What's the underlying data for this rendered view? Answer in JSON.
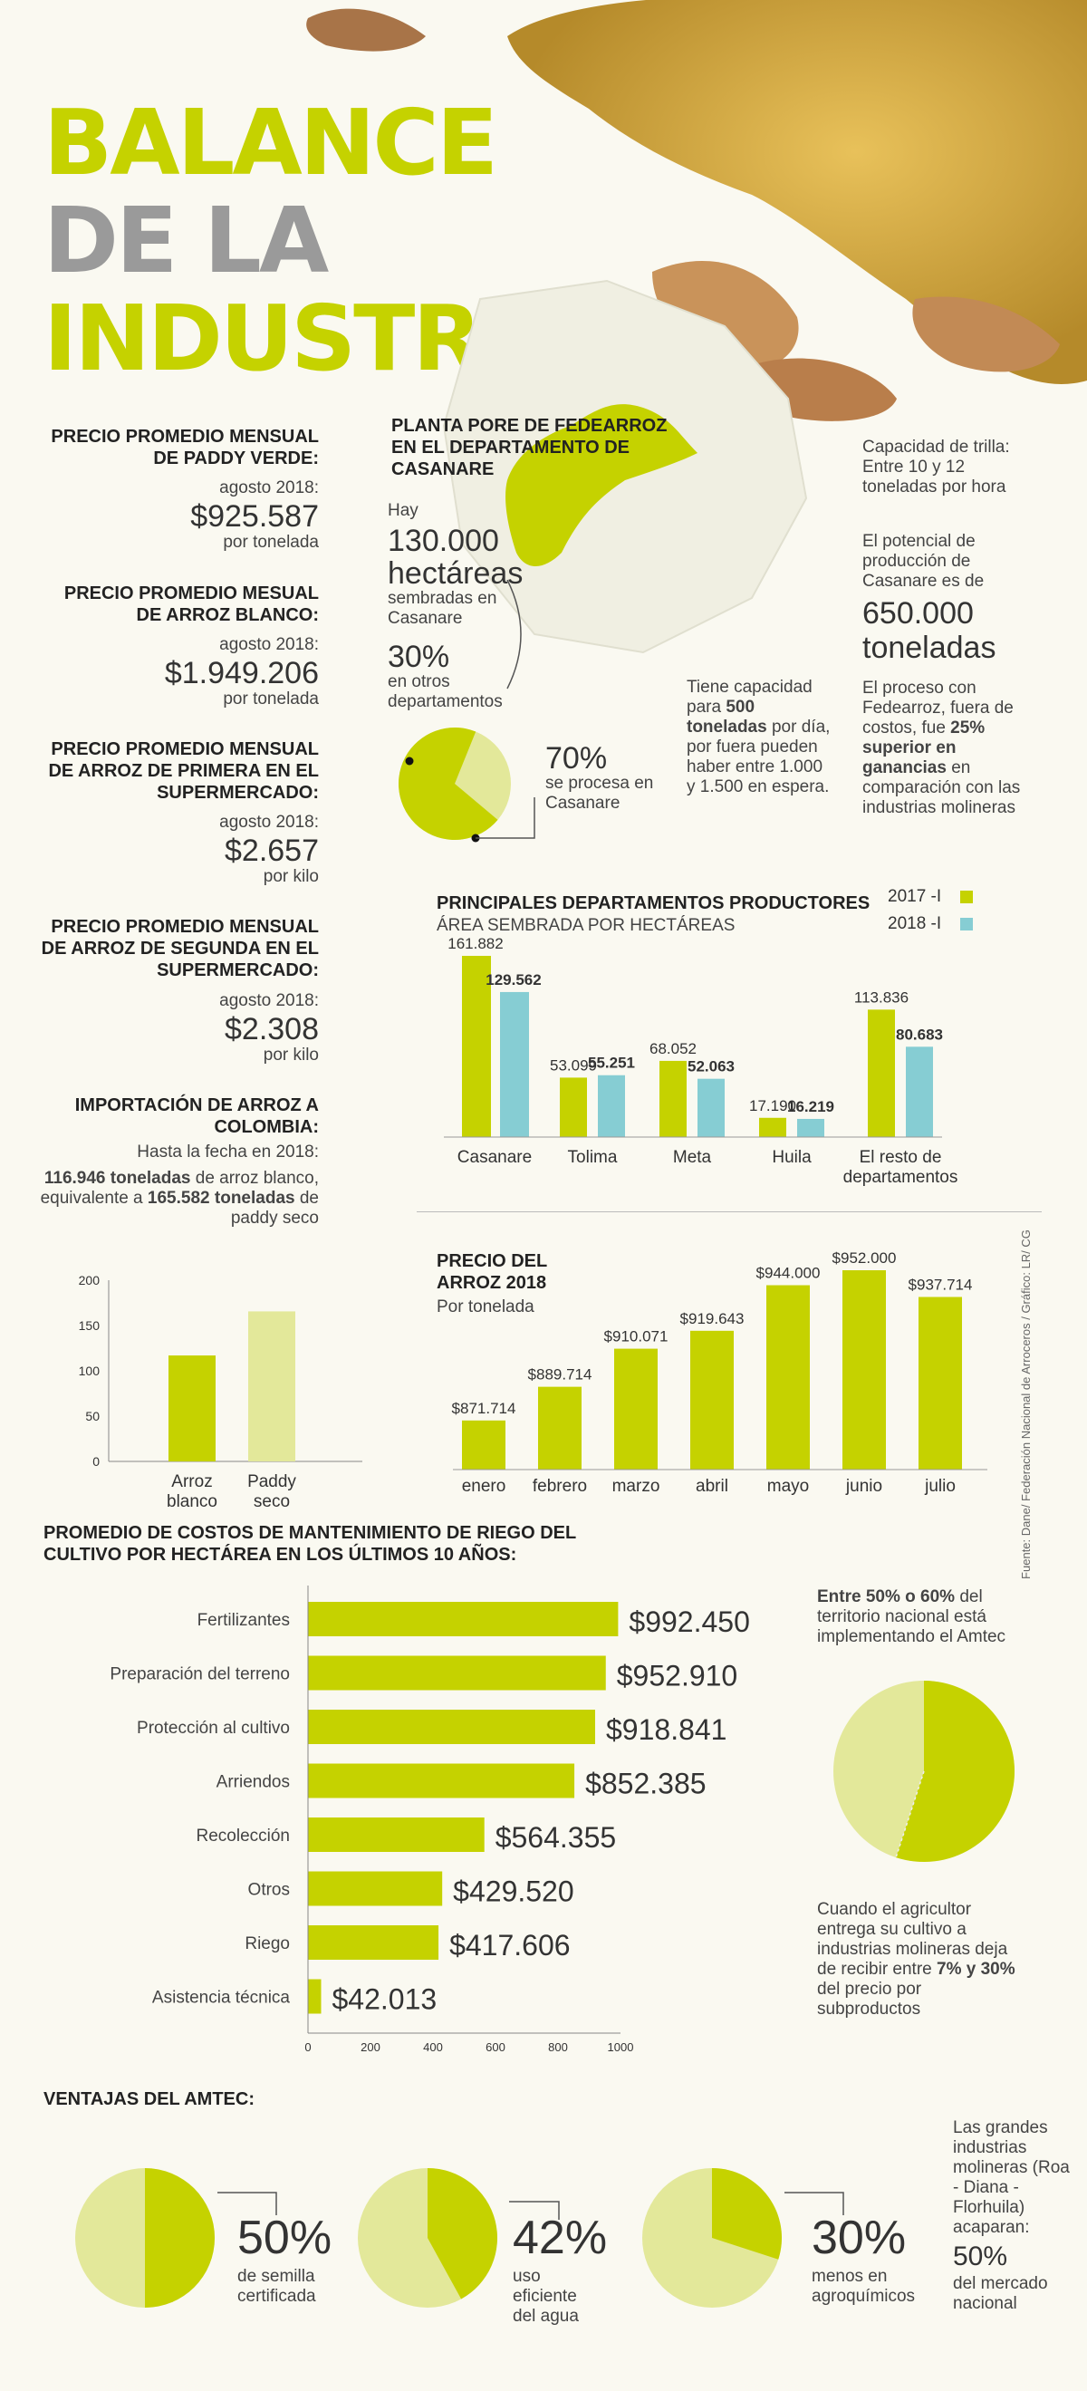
{
  "title": {
    "line1": "BALANCE",
    "line2": "DE LA",
    "line3": "INDUSTRIA"
  },
  "colors": {
    "lime": "#c5d200",
    "pale": "#e3e89a",
    "teal": "#86cdd3",
    "gray": "#9a9a9a"
  },
  "prices": [
    {
      "heading": "PRECIO PROMEDIO MENSUAL DE PADDY VERDE:",
      "date": "agosto 2018:",
      "value": "$925.587",
      "unit": "por tonelada"
    },
    {
      "heading": "PRECIO PROMEDIO MESUAL DE ARROZ BLANCO:",
      "date": "agosto 2018:",
      "value": "$1.949.206",
      "unit": "por tonelada"
    },
    {
      "heading": "PRECIO PROMEDIO MENSUAL DE ARROZ DE PRIMERA EN EL SUPERMERCADO:",
      "date": "agosto 2018:",
      "value": "$2.657",
      "unit": "por kilo"
    },
    {
      "heading": "PRECIO PROMEDIO MENSUAL DE ARROZ DE SEGUNDA EN EL SUPERMERCADO:",
      "date": "agosto 2018:",
      "value": "$2.308",
      "unit": "por kilo"
    }
  ],
  "import": {
    "heading": "IMPORTACIÓN DE ARROZ A COLOMBIA:",
    "date": "Hasta la fecha en 2018:",
    "amount1": "116.946 toneladas",
    "text1": " de arroz blanco, equivalente a",
    "amount2": "165.582 toneladas",
    "text2": " de paddy seco"
  },
  "plant": {
    "heading": "PLANTA PORE DE FEDEARROZ EN EL DEPARTAMENTO DE CASANARE",
    "hay": "Hay",
    "hectares": "130.000",
    "hectares_word": "hectáreas",
    "sembradas": "sembradas en Casanare",
    "pct_other": "30%",
    "other_text": "en otros departamentos",
    "pct_casanare": "70%",
    "casanare_text": "se procesa en Casanare",
    "capacity_pre": "Tiene capacidad para ",
    "capacity_bold": "500 toneladas",
    "capacity_post": " por día, por fuera pueden haber entre 1.000 y 1.500 en espera.",
    "trilla": "Capacidad de trilla: Entre 10 y 12 toneladas por hora",
    "potencial": "El potencial de producción de Casanare es de",
    "potencial_value": "650.000",
    "potencial_unit": "toneladas",
    "proceso_pre": "El proceso con Fedearroz, fuera de costos, fue ",
    "proceso_bold": "25% superior en ganancias",
    "proceso_post": " en comparación con las industrias molineras"
  },
  "charts_text": {
    "dept_title": "PRINCIPALES DEPARTAMENTOS PRODUCTORES",
    "dept_subtitle": "ÁREA SEMBRADA POR HECTÁREAS",
    "price_title": "PRECIO DEL ARROZ 2018",
    "price_subtitle": "Por tonelada",
    "costs_title": "PROMEDIO DE COSTOS DE MANTENIMIENTO DE RIEGO DEL CULTIVO POR HECTÁREA EN LOS ÚLTIMOS 10 AÑOS:",
    "source": "Fuente: Dane/ Federación Nacional de Arroceros / Gráfico: LR/ CG"
  },
  "amtec_side": {
    "top_pre": "Entre 50% o 60%",
    "top_post": " del territorio nacional está implementando el Amtec",
    "bottom_pre": "Cuando el agricultor entrega su cultivo a industrias molineras deja de recibir entre ",
    "bottom_bold": "7% y 30%",
    "bottom_post": " del precio por subproductos"
  },
  "ventajas": {
    "heading": "VENTAJAS DEL AMTEC:",
    "items": [
      {
        "pct": "50%",
        "text": "de semilla certificada"
      },
      {
        "pct": "42%",
        "text": "uso eficiente del agua"
      },
      {
        "pct": "30%",
        "text": "menos en agroquímicos"
      }
    ],
    "side_text": "Las grandes industrias molineras (Roa - Diana - Florhuila) acaparan:",
    "side_pct": "50%",
    "side_post": "del mercado nacional"
  },
  "chart_data": [
    {
      "type": "bar",
      "title": "PRINCIPALES DEPARTAMENTOS PRODUCTORES",
      "subtitle": "ÁREA SEMBRADA POR HECTÁREAS",
      "categories": [
        "Casanare",
        "Tolima",
        "Meta",
        "Huila",
        "El resto de departamentos"
      ],
      "series": [
        {
          "name": "2017 -I",
          "values": [
            161882,
            53099,
            68052,
            17190,
            113836
          ],
          "labels": [
            "161.882",
            "53.099",
            "68.052",
            "17.190",
            "113.836"
          ]
        },
        {
          "name": "2018 -I",
          "values": [
            129562,
            55251,
            52063,
            16219,
            80683
          ],
          "labels": [
            "129.562",
            "55.251",
            "52.063",
            "16.219",
            "80.683"
          ]
        }
      ],
      "legend": "top-right",
      "ylim": [
        0,
        161882
      ]
    },
    {
      "type": "bar",
      "title": "PRECIO DEL ARROZ 2018",
      "subtitle": "Por tonelada",
      "categories": [
        "enero",
        "febrero",
        "marzo",
        "abril",
        "mayo",
        "junio",
        "julio"
      ],
      "values": [
        871714,
        889714,
        910071,
        919643,
        944000,
        952000,
        937714
      ],
      "labels": [
        "$871.714",
        "$889.714",
        "$910.071",
        "$919.643",
        "$944.000",
        "$952.000",
        "$937.714"
      ],
      "ylim": [
        860000,
        952000
      ]
    },
    {
      "type": "bar",
      "categories": [
        "Arroz blanco",
        "Paddy seco"
      ],
      "values": [
        116.946,
        165.582
      ],
      "yticks": [
        "200",
        "150",
        "100",
        "50",
        "0"
      ],
      "ylim": [
        0,
        200
      ]
    },
    {
      "type": "bar",
      "orientation": "horizontal",
      "title": "PROMEDIO DE COSTOS DE MANTENIMIENTO DE RIEGO DEL CULTIVO POR HECTÁREA EN LOS ÚLTIMOS 10 AÑOS:",
      "categories": [
        "Fertilizantes",
        "Preparación del terreno",
        "Protección al cultivo",
        "Arriendos",
        "Recolección",
        "Otros",
        "Riego",
        "Asistencia técnica"
      ],
      "values": [
        992.45,
        952.91,
        918.841,
        852.385,
        564.355,
        429.52,
        417.606,
        42.013
      ],
      "labels": [
        "$992.450",
        "$952.910",
        "$918.841",
        "$852.385",
        "$564.355",
        "$429.520",
        "$417.606",
        "$42.013"
      ],
      "xticks": [
        "0",
        "200",
        "400",
        "600",
        "800",
        "1000"
      ],
      "xlim": [
        0,
        1000
      ]
    },
    {
      "type": "pie",
      "labels": [
        "Casanare",
        "otros departamentos"
      ],
      "values": [
        70,
        30
      ],
      "label_text": [
        "70%",
        "30%"
      ]
    },
    {
      "type": "pie",
      "labels": [
        "Amtec",
        "resto"
      ],
      "values": [
        55,
        45
      ]
    },
    {
      "type": "pie",
      "labels": [
        "semilla certificada",
        "resto"
      ],
      "values": [
        50,
        50
      ]
    },
    {
      "type": "pie",
      "labels": [
        "uso eficiente del agua",
        "resto"
      ],
      "values": [
        42,
        58
      ]
    },
    {
      "type": "pie",
      "labels": [
        "menos en agroquímicos",
        "resto"
      ],
      "values": [
        30,
        70
      ]
    }
  ]
}
